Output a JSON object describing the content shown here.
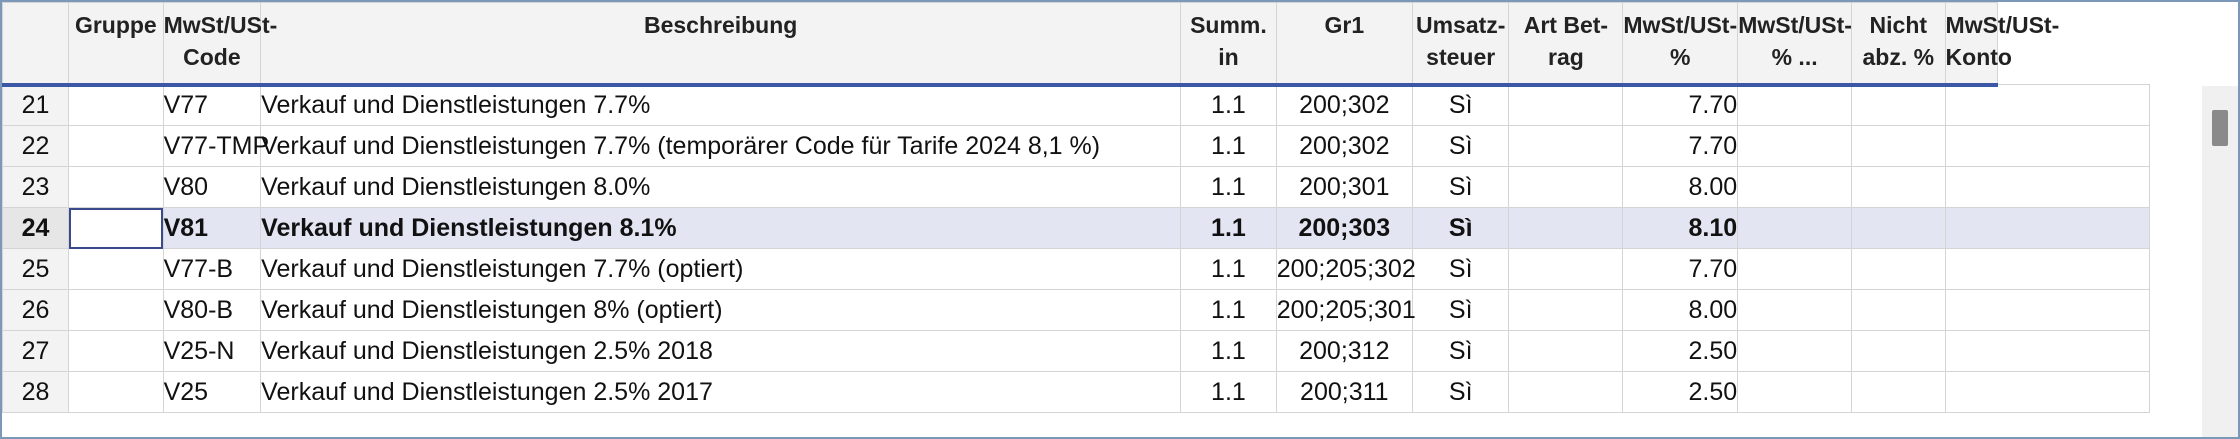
{
  "columns": [
    "Gruppe",
    "MwSt/USt-Code",
    "Beschreibung",
    "Summ. in",
    "Gr1",
    "Umsatz-steuer",
    "Art Bet-rag",
    "MwSt/USt-%",
    "MwSt/USt-% ...",
    "Nicht abz. %",
    "MwSt/USt-Konto"
  ],
  "rows": [
    {
      "num": "21",
      "gruppe": "",
      "code": "V77",
      "desc": "Verkauf und Dienstleistungen 7.7%",
      "summ": "1.1",
      "gr1": "200;302",
      "ust": "Sì",
      "art": "",
      "pct": "7.70",
      "pct2": "",
      "nicht": "",
      "konto": ""
    },
    {
      "num": "22",
      "gruppe": "",
      "code": "V77-TMP",
      "desc": "Verkauf und Dienstleistungen 7.7% (temporärer Code für Tarife 2024 8,1 %)",
      "summ": "1.1",
      "gr1": "200;302",
      "ust": "Sì",
      "art": "",
      "pct": "7.70",
      "pct2": "",
      "nicht": "",
      "konto": ""
    },
    {
      "num": "23",
      "gruppe": "",
      "code": "V80",
      "desc": "Verkauf und Dienstleistungen 8.0%",
      "summ": "1.1",
      "gr1": "200;301",
      "ust": "Sì",
      "art": "",
      "pct": "8.00",
      "pct2": "",
      "nicht": "",
      "konto": ""
    },
    {
      "num": "24",
      "gruppe": "",
      "code": "V81",
      "desc": "Verkauf und Dienstleistungen 8.1%",
      "summ": "1.1",
      "gr1": "200;303",
      "ust": "Sì",
      "art": "",
      "pct": "8.10",
      "pct2": "",
      "nicht": "",
      "konto": ""
    },
    {
      "num": "25",
      "gruppe": "",
      "code": "V77-B",
      "desc": "Verkauf und Dienstleistungen 7.7% (optiert)",
      "summ": "1.1",
      "gr1": "200;205;302",
      "ust": "Sì",
      "art": "",
      "pct": "7.70",
      "pct2": "",
      "nicht": "",
      "konto": ""
    },
    {
      "num": "26",
      "gruppe": "",
      "code": "V80-B",
      "desc": "Verkauf und Dienstleistungen 8% (optiert)",
      "summ": "1.1",
      "gr1": "200;205;301",
      "ust": "Sì",
      "art": "",
      "pct": "8.00",
      "pct2": "",
      "nicht": "",
      "konto": ""
    },
    {
      "num": "27",
      "gruppe": "",
      "code": "V25-N",
      "desc": "Verkauf und Dienstleistungen 2.5% 2018",
      "summ": "1.1",
      "gr1": "200;312",
      "ust": "Sì",
      "art": "",
      "pct": "2.50",
      "pct2": "",
      "nicht": "",
      "konto": ""
    },
    {
      "num": "28",
      "gruppe": "",
      "code": "V25",
      "desc": "Verkauf und Dienstleistungen 2.5% 2017",
      "summ": "1.1",
      "gr1": "200;311",
      "ust": "Sì",
      "art": "",
      "pct": "2.50",
      "pct2": "",
      "nicht": "",
      "konto": ""
    }
  ],
  "selected_row": "24"
}
